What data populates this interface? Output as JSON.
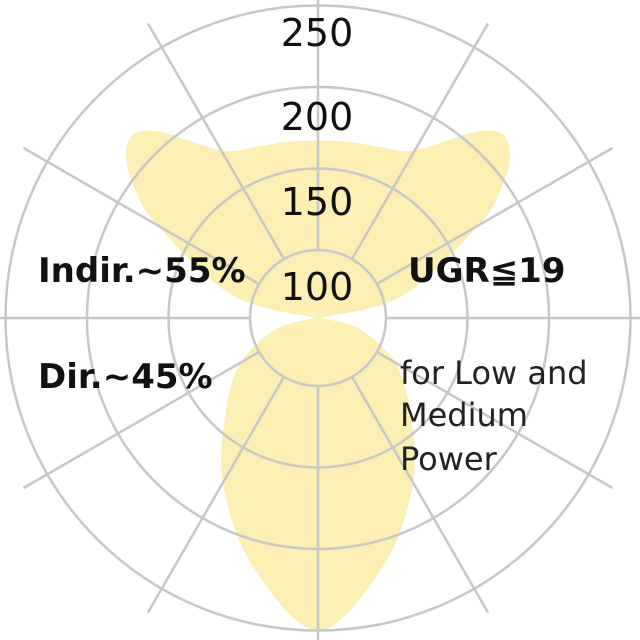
{
  "chart_data": {
    "type": "polar",
    "radial_ticks": [
      "100",
      "150",
      "200",
      "250"
    ],
    "radial_range": [
      100,
      250
    ],
    "angular_grid_step_deg": 30,
    "fill_color": "#FBEFB4",
    "grid_color": "#C8C8C8",
    "series": [
      {
        "direction": "up",
        "angles_deg": [
          -90,
          -75,
          -60,
          -55,
          -50,
          -45,
          -40,
          -30,
          -20,
          -10,
          0,
          10,
          20,
          30,
          40,
          45,
          50,
          55,
          60,
          75,
          90
        ],
        "values": [
          60,
          113,
          172,
          195,
          212,
          218,
          207,
          177,
          170,
          168,
          167,
          168,
          170,
          177,
          207,
          218,
          212,
          195,
          172,
          113,
          60
        ]
      },
      {
        "direction": "down",
        "angles_deg": [
          -90,
          -75,
          -60,
          -45,
          -30,
          -15,
          0,
          15,
          30,
          45,
          60,
          75,
          90
        ],
        "values": [
          60,
          85,
          113,
          138,
          175,
          215,
          250,
          215,
          175,
          138,
          113,
          85,
          60
        ]
      }
    ]
  },
  "labels": {
    "indirect": "Indir.~55%",
    "direct": "Dir.~45%",
    "ugr": "UGR≦19",
    "note_lines": [
      "for Low and",
      "Medium",
      "Power"
    ]
  }
}
